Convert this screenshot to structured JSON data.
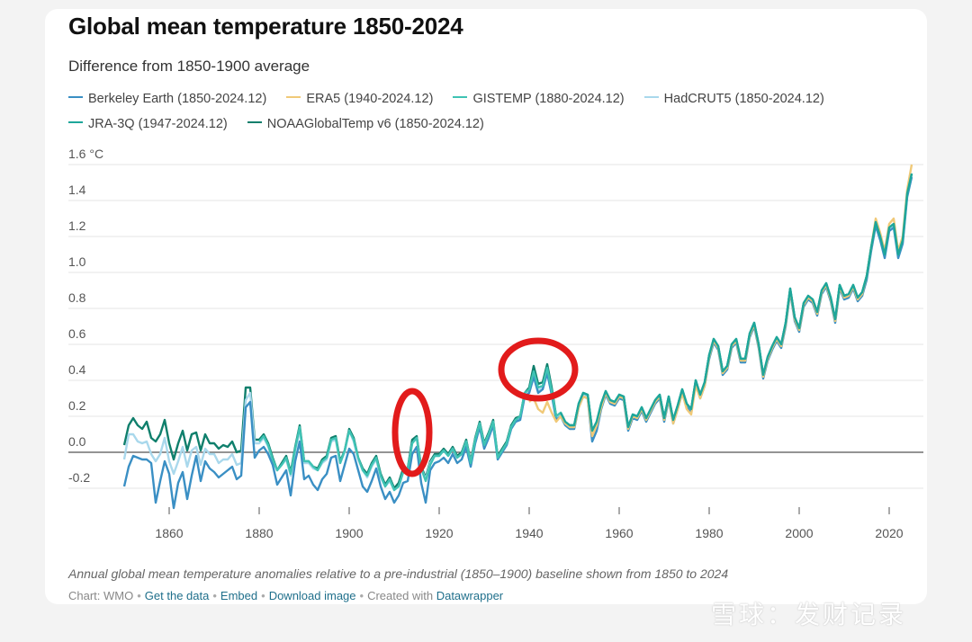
{
  "title": "Global mean temperature 1850-2024",
  "subtitle": "Difference from 1850-1900 average",
  "legend": [
    {
      "label": "Berkeley Earth (1850-2024.12)",
      "color": "#3a8fc4"
    },
    {
      "label": "ERA5 (1940-2024.12)",
      "color": "#f0c978"
    },
    {
      "label": "GISTEMP (1880-2024.12)",
      "color": "#3fc3b4"
    },
    {
      "label": "HadCRUT5 (1850-2024.12)",
      "color": "#a9d8ec"
    },
    {
      "label": "JRA-3Q (1947-2024.12)",
      "color": "#1ea69a"
    },
    {
      "label": "NOAAGlobalTemp v6 (1850-2024.12)",
      "color": "#0f7f6c"
    }
  ],
  "caption": "Annual global mean temperature anomalies relative to a pre-industrial (1850–1900) baseline shown from 1850 to 2024",
  "footer": {
    "chart_by": "Chart: WMO",
    "get_data": "Get the data",
    "embed": "Embed",
    "download": "Download image",
    "created_with": "Created with",
    "tool": "Datawrapper"
  },
  "watermark": "雪球：发财记录",
  "chart_data": {
    "type": "line",
    "title": "Global mean temperature 1850-2024",
    "ylabel": "°C",
    "y_tick_labels": [
      "1.6 °C",
      "1.4",
      "1.2",
      "1.0",
      "0.8",
      "0.6",
      "0.4",
      "0.2",
      "0.0",
      "-0.2"
    ],
    "y_ticks": [
      1.6,
      1.4,
      1.2,
      1.0,
      0.8,
      0.6,
      0.4,
      0.2,
      0.0,
      -0.2
    ],
    "x_ticks": [
      1860,
      1880,
      1900,
      1920,
      1940,
      1960,
      1980,
      2000,
      2020
    ],
    "xlim": [
      1848,
      2026
    ],
    "ylim": [
      -0.35,
      1.62
    ],
    "grid": true,
    "x_start": 1850,
    "series": [
      {
        "name": "NOAAGlobalTemp v6",
        "color": "#0f7f6c",
        "start": 1850,
        "values": [
          0.04,
          0.15,
          0.19,
          0.15,
          0.13,
          0.17,
          0.08,
          0.06,
          0.1,
          0.18,
          0.05,
          -0.04,
          0.05,
          0.12,
          0.01,
          0.1,
          0.11,
          0.01,
          0.1,
          0.05,
          0.05,
          0.02,
          0.04,
          0.03,
          0.06,
          0.0,
          0.01,
          0.36,
          0.36,
          0.07,
          0.07,
          0.1,
          0.05,
          -0.03,
          -0.1,
          -0.06,
          -0.02,
          -0.11,
          0.03,
          0.15,
          -0.05,
          -0.05,
          -0.08,
          -0.09,
          -0.04,
          -0.02,
          0.08,
          0.09,
          -0.05,
          0.01,
          0.13,
          0.08,
          -0.03,
          -0.09,
          -0.12,
          -0.06,
          -0.02,
          -0.12,
          -0.18,
          -0.14,
          -0.2,
          -0.17,
          -0.09,
          -0.09,
          0.07,
          0.09,
          -0.08,
          -0.14,
          -0.05,
          -0.01,
          -0.01,
          0.02,
          -0.01,
          0.03,
          -0.02,
          0.0,
          0.07,
          -0.05,
          0.08,
          0.17,
          0.05,
          0.11,
          0.18,
          -0.02,
          0.02,
          0.06,
          0.15,
          0.19,
          0.2,
          0.33,
          0.36,
          0.48,
          0.38,
          0.39,
          0.49,
          0.36,
          0.2,
          0.22,
          0.17,
          0.15,
          0.15,
          0.27,
          0.33,
          0.32,
          0.12,
          0.17,
          0.27,
          0.34,
          0.29,
          0.28,
          0.32,
          0.31,
          0.14,
          0.21,
          0.2,
          0.25,
          0.19,
          0.24,
          0.29,
          0.32,
          0.19,
          0.31,
          0.18,
          0.26,
          0.35,
          0.27,
          0.24,
          0.4,
          0.32,
          0.39,
          0.54,
          0.63,
          0.59,
          0.45,
          0.48,
          0.6,
          0.63,
          0.52,
          0.52,
          0.66,
          0.72,
          0.6,
          0.43,
          0.53,
          0.59,
          0.64,
          0.6,
          0.72,
          0.91,
          0.75,
          0.69,
          0.83,
          0.87,
          0.85,
          0.78,
          0.9,
          0.94,
          0.86,
          0.74,
          0.93,
          0.87,
          0.88,
          0.93,
          0.86,
          0.89,
          0.98,
          1.14,
          1.28,
          1.2,
          1.1,
          1.25,
          1.27,
          1.1,
          1.18,
          1.44,
          1.55
        ]
      },
      {
        "name": "HadCRUT5",
        "color": "#a9d8ec",
        "start": 1850,
        "values": [
          -0.04,
          0.1,
          0.1,
          0.06,
          0.05,
          0.06,
          -0.01,
          -0.05,
          -0.01,
          0.08,
          -0.05,
          -0.12,
          -0.05,
          0.03,
          -0.08,
          0.01,
          0.03,
          -0.07,
          0.02,
          -0.01,
          -0.01,
          -0.06,
          -0.04,
          -0.04,
          -0.01,
          -0.07,
          -0.06,
          0.29,
          0.33,
          0.05,
          0.05,
          0.08,
          0.03,
          -0.05,
          -0.1,
          -0.07,
          -0.04,
          -0.13,
          0.01,
          0.12,
          -0.06,
          -0.06,
          -0.09,
          -0.1,
          -0.06,
          -0.04,
          0.06,
          0.07,
          -0.06,
          0.0,
          0.12,
          0.06,
          -0.04,
          -0.1,
          -0.14,
          -0.08,
          -0.04,
          -0.14,
          -0.19,
          -0.16,
          -0.21,
          -0.19,
          -0.11,
          -0.1,
          0.05,
          0.08,
          -0.09,
          -0.15,
          -0.06,
          -0.02,
          -0.02,
          0.01,
          -0.02,
          0.02,
          -0.03,
          -0.01,
          0.06,
          -0.06,
          0.07,
          0.16,
          0.04,
          0.1,
          0.17,
          -0.03,
          0.01,
          0.05,
          0.14,
          0.18,
          0.19,
          0.32,
          0.34,
          0.43,
          0.34,
          0.36,
          0.45,
          0.33,
          0.19,
          0.21,
          0.16,
          0.14,
          0.14,
          0.26,
          0.32,
          0.31,
          0.11,
          0.16,
          0.26,
          0.33,
          0.28,
          0.27,
          0.31,
          0.3,
          0.13,
          0.2,
          0.19,
          0.24,
          0.18,
          0.23,
          0.28,
          0.31,
          0.18,
          0.3,
          0.17,
          0.25,
          0.34,
          0.26,
          0.23,
          0.39,
          0.31,
          0.38,
          0.53,
          0.62,
          0.58,
          0.44,
          0.47,
          0.59,
          0.62,
          0.51,
          0.51,
          0.65,
          0.71,
          0.59,
          0.42,
          0.52,
          0.58,
          0.63,
          0.59,
          0.71,
          0.9,
          0.74,
          0.68,
          0.82,
          0.86,
          0.84,
          0.77,
          0.89,
          0.93,
          0.85,
          0.73,
          0.92,
          0.86,
          0.87,
          0.92,
          0.85,
          0.88,
          0.97,
          1.13,
          1.27,
          1.19,
          1.09,
          1.24,
          1.26,
          1.09,
          1.17,
          1.43,
          1.54
        ]
      },
      {
        "name": "Berkeley Earth",
        "color": "#3a8fc4",
        "start": 1850,
        "values": [
          -0.19,
          -0.08,
          -0.02,
          -0.03,
          -0.04,
          -0.04,
          -0.06,
          -0.28,
          -0.16,
          -0.05,
          -0.12,
          -0.31,
          -0.17,
          -0.11,
          -0.26,
          -0.13,
          -0.02,
          -0.16,
          -0.05,
          -0.09,
          -0.11,
          -0.14,
          -0.12,
          -0.1,
          -0.08,
          -0.15,
          -0.13,
          0.25,
          0.28,
          -0.03,
          0.01,
          0.03,
          -0.01,
          -0.07,
          -0.18,
          -0.14,
          -0.1,
          -0.24,
          -0.05,
          0.06,
          -0.15,
          -0.13,
          -0.18,
          -0.21,
          -0.15,
          -0.12,
          -0.03,
          -0.02,
          -0.16,
          -0.07,
          0.02,
          -0.01,
          -0.1,
          -0.19,
          -0.22,
          -0.16,
          -0.09,
          -0.19,
          -0.26,
          -0.22,
          -0.28,
          -0.24,
          -0.17,
          -0.16,
          -0.01,
          0.03,
          -0.17,
          -0.28,
          -0.1,
          -0.06,
          -0.05,
          -0.03,
          -0.06,
          -0.01,
          -0.06,
          -0.04,
          0.03,
          -0.08,
          0.05,
          0.14,
          0.02,
          0.08,
          0.15,
          -0.04,
          0.0,
          0.04,
          0.13,
          0.17,
          0.18,
          0.31,
          0.33,
          0.42,
          0.33,
          0.35,
          0.44,
          0.32,
          0.18,
          0.2,
          0.15,
          0.13,
          0.13,
          0.25,
          0.31,
          0.3,
          0.06,
          0.12,
          0.24,
          0.32,
          0.27,
          0.26,
          0.3,
          0.29,
          0.12,
          0.19,
          0.18,
          0.23,
          0.17,
          0.22,
          0.27,
          0.3,
          0.17,
          0.29,
          0.16,
          0.24,
          0.33,
          0.25,
          0.22,
          0.38,
          0.3,
          0.37,
          0.52,
          0.61,
          0.57,
          0.43,
          0.46,
          0.58,
          0.61,
          0.5,
          0.5,
          0.64,
          0.7,
          0.58,
          0.41,
          0.51,
          0.57,
          0.62,
          0.58,
          0.7,
          0.89,
          0.73,
          0.67,
          0.81,
          0.85,
          0.83,
          0.76,
          0.88,
          0.92,
          0.84,
          0.72,
          0.91,
          0.85,
          0.86,
          0.91,
          0.84,
          0.87,
          0.96,
          1.12,
          1.26,
          1.18,
          1.08,
          1.23,
          1.25,
          1.08,
          1.16,
          1.42,
          1.53
        ]
      },
      {
        "name": "GISTEMP",
        "color": "#3fc3b4",
        "start": 1880,
        "values": [
          0.06,
          0.09,
          0.04,
          -0.04,
          -0.1,
          -0.07,
          -0.03,
          -0.12,
          0.02,
          0.14,
          -0.05,
          -0.05,
          -0.08,
          -0.1,
          -0.05,
          -0.03,
          0.07,
          0.08,
          -0.06,
          0.01,
          0.12,
          0.07,
          -0.03,
          -0.1,
          -0.13,
          -0.07,
          -0.03,
          -0.13,
          -0.19,
          -0.15,
          -0.21,
          -0.19,
          -0.11,
          -0.1,
          0.05,
          0.08,
          -0.09,
          -0.16,
          -0.07,
          -0.02,
          -0.02,
          0.01,
          -0.02,
          0.02,
          -0.03,
          -0.01,
          0.06,
          -0.06,
          0.07,
          0.16,
          0.04,
          0.1,
          0.17,
          -0.03,
          0.01,
          0.05,
          0.14,
          0.18,
          0.2,
          0.33,
          0.35,
          0.45,
          0.36,
          0.37,
          0.47,
          0.34,
          0.2,
          0.22,
          0.17,
          0.15,
          0.15,
          0.27,
          0.33,
          0.32,
          0.12,
          0.17,
          0.27,
          0.34,
          0.29,
          0.28,
          0.32,
          0.31,
          0.14,
          0.21,
          0.2,
          0.25,
          0.19,
          0.24,
          0.29,
          0.32,
          0.19,
          0.31,
          0.18,
          0.26,
          0.35,
          0.27,
          0.24,
          0.4,
          0.32,
          0.39,
          0.54,
          0.63,
          0.59,
          0.45,
          0.48,
          0.6,
          0.63,
          0.52,
          0.52,
          0.66,
          0.72,
          0.6,
          0.43,
          0.53,
          0.59,
          0.64,
          0.6,
          0.72,
          0.91,
          0.75,
          0.69,
          0.83,
          0.87,
          0.85,
          0.78,
          0.9,
          0.94,
          0.86,
          0.74,
          0.93,
          0.87,
          0.88,
          0.93,
          0.86,
          0.89,
          0.98,
          1.14,
          1.28,
          1.2,
          1.1,
          1.25,
          1.27,
          1.1,
          1.18,
          1.44,
          1.55
        ]
      },
      {
        "name": "ERA5",
        "color": "#f0c978",
        "start": 1940,
        "values": [
          0.28,
          0.3,
          0.24,
          0.22,
          0.28,
          0.22,
          0.17,
          0.2,
          0.16,
          0.14,
          0.14,
          0.25,
          0.31,
          0.3,
          0.09,
          0.15,
          0.25,
          0.33,
          0.28,
          0.27,
          0.31,
          0.3,
          0.13,
          0.2,
          0.19,
          0.24,
          0.18,
          0.23,
          0.28,
          0.31,
          0.18,
          0.3,
          0.16,
          0.24,
          0.33,
          0.24,
          0.21,
          0.37,
          0.3,
          0.37,
          0.53,
          0.62,
          0.58,
          0.44,
          0.47,
          0.59,
          0.62,
          0.51,
          0.51,
          0.65,
          0.71,
          0.59,
          0.42,
          0.52,
          0.58,
          0.63,
          0.59,
          0.71,
          0.9,
          0.74,
          0.68,
          0.82,
          0.86,
          0.84,
          0.77,
          0.89,
          0.93,
          0.85,
          0.73,
          0.92,
          0.86,
          0.87,
          0.92,
          0.85,
          0.88,
          0.98,
          1.14,
          1.3,
          1.22,
          1.12,
          1.27,
          1.3,
          1.12,
          1.2,
          1.46,
          1.6
        ]
      },
      {
        "name": "JRA-3Q",
        "color": "#1ea69a",
        "start": 1947,
        "values": [
          0.22,
          0.17,
          0.15,
          0.15,
          0.27,
          0.33,
          0.32,
          0.12,
          0.17,
          0.27,
          0.34,
          0.29,
          0.28,
          0.32,
          0.31,
          0.14,
          0.21,
          0.2,
          0.25,
          0.19,
          0.24,
          0.29,
          0.32,
          0.19,
          0.31,
          0.18,
          0.26,
          0.35,
          0.27,
          0.24,
          0.4,
          0.32,
          0.39,
          0.54,
          0.63,
          0.59,
          0.45,
          0.48,
          0.6,
          0.63,
          0.52,
          0.52,
          0.66,
          0.72,
          0.6,
          0.43,
          0.53,
          0.59,
          0.64,
          0.6,
          0.72,
          0.91,
          0.75,
          0.69,
          0.83,
          0.87,
          0.85,
          0.78,
          0.9,
          0.94,
          0.86,
          0.74,
          0.93,
          0.87,
          0.88,
          0.93,
          0.86,
          0.89,
          0.98,
          1.14,
          1.28,
          1.2,
          1.1,
          1.25,
          1.27,
          1.1,
          1.18,
          1.44,
          1.55
        ]
      }
    ]
  }
}
